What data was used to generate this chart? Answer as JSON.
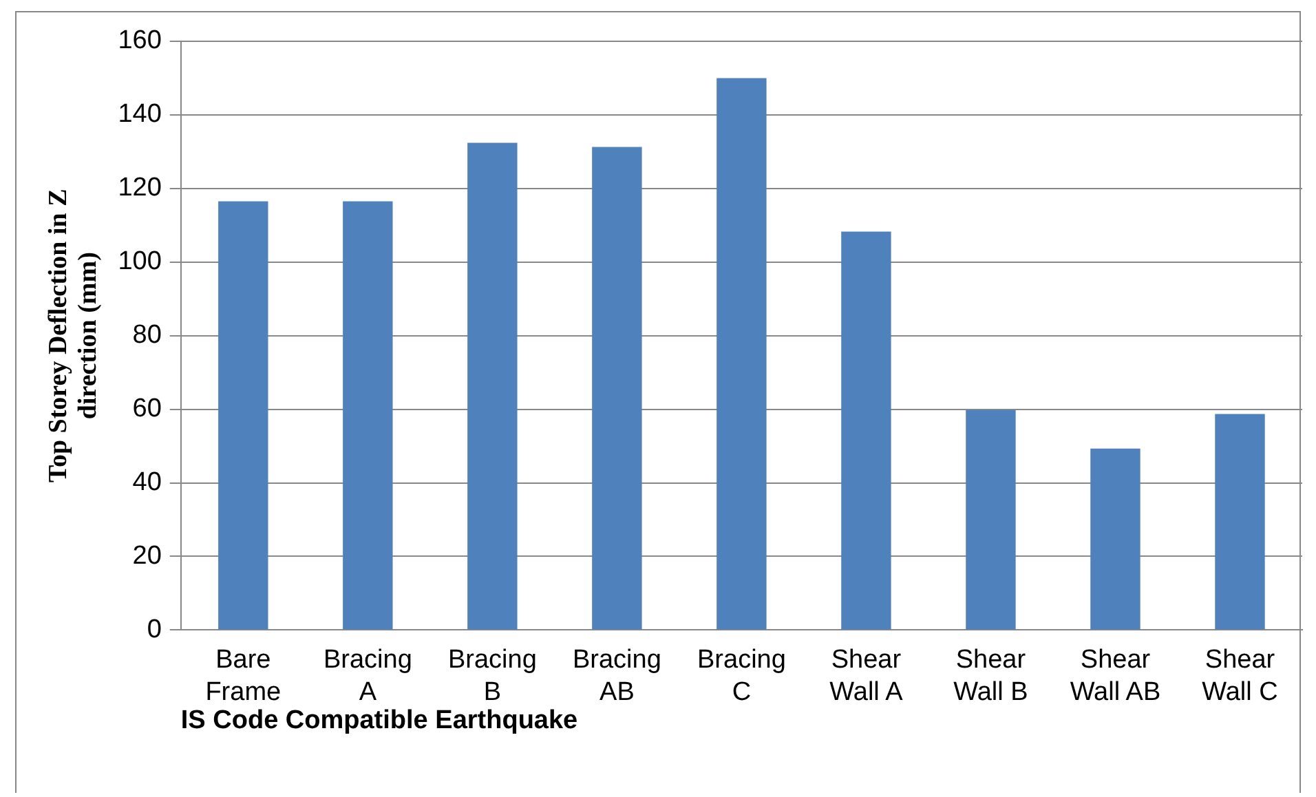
{
  "chart_data": {
    "type": "bar",
    "xlabel": "IS Code Compatible Earthquake",
    "ylabel": "Top Storey Deflection in Z direction (mm)",
    "categories": [
      "Bare Frame",
      "Bracing A",
      "Bracing B",
      "Bracing AB",
      "Bracing C",
      "Shear Wall A",
      "Shear Wall B",
      "Shear Wall AB",
      "Shear Wall C"
    ],
    "values": [
      116.5,
      116.5,
      132.4,
      131.3,
      150,
      108.3,
      59.8,
      49.3,
      58.7
    ],
    "color": "#4f81bd",
    "ylim": [
      0,
      160
    ],
    "yticks": [
      0,
      20,
      40,
      60,
      80,
      100,
      120,
      140,
      160
    ],
    "grid": "y",
    "legend": false
  }
}
